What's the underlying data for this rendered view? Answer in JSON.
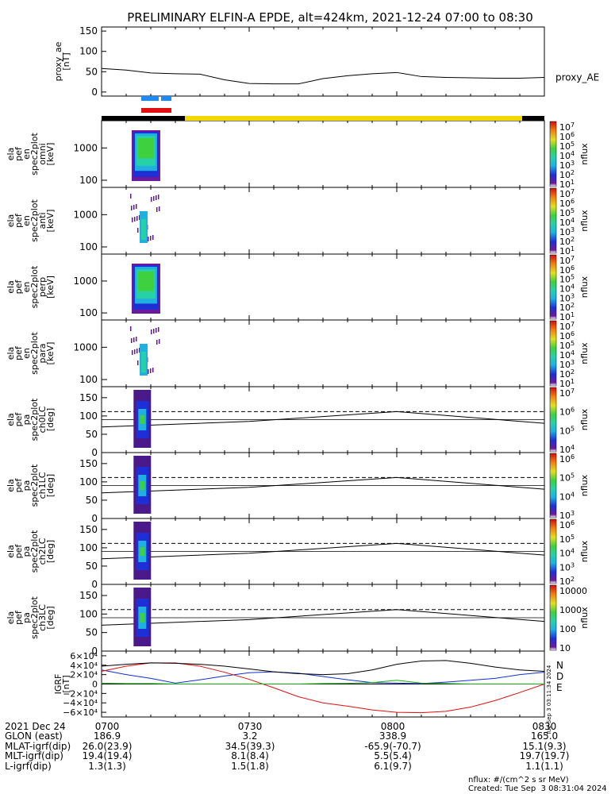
{
  "title": "PRELIMINARY ELFIN-A EPDE, alt=424km, 2021-12-24 07:00 to 08:30",
  "chart_data": [
    {
      "type": "line",
      "ylabel": [
        "proxy_ae",
        "[nT]"
      ],
      "yticks": [
        "150",
        "100",
        "50",
        "0"
      ],
      "ylim": [
        -10,
        160
      ],
      "series": [
        {
          "name": "proxy_AE",
          "x": [
            0,
            5,
            10,
            15,
            20,
            25,
            30,
            35,
            40,
            45,
            50,
            55,
            60,
            65,
            70,
            75,
            80,
            85,
            90
          ],
          "values": [
            58,
            54,
            47,
            45,
            44,
            30,
            21,
            20,
            20,
            33,
            40,
            45,
            48,
            38,
            36,
            35,
            34,
            34,
            36
          ]
        }
      ]
    },
    {
      "type": "heatmap",
      "ylabel": [
        "ela",
        "pef",
        "en",
        "spec2plot",
        "omni",
        "[keV]"
      ],
      "yticks": [
        "1000",
        "100"
      ],
      "colorbar_ticks": [
        "10^7",
        "10^6",
        "10^5",
        "10^4",
        "10^3",
        "10^2",
        "10^1"
      ],
      "colorbar_label": "nflux"
    },
    {
      "type": "heatmap",
      "ylabel": [
        "ela",
        "pef",
        "en",
        "spec2plot",
        "anti",
        "[keV]"
      ],
      "yticks": [
        "1000",
        "100"
      ],
      "colorbar_ticks": [
        "10^7",
        "10^6",
        "10^5",
        "10^4",
        "10^3",
        "10^2",
        "10^1"
      ],
      "colorbar_label": "nflux"
    },
    {
      "type": "heatmap",
      "ylabel": [
        "ela",
        "pef",
        "en",
        "spec2plot",
        "perp",
        "[keV]"
      ],
      "yticks": [
        "1000",
        "100"
      ],
      "colorbar_ticks": [
        "10^7",
        "10^6",
        "10^5",
        "10^4",
        "10^3",
        "10^2",
        "10^1"
      ],
      "colorbar_label": "nflux"
    },
    {
      "type": "heatmap",
      "ylabel": [
        "ela",
        "pef",
        "en",
        "spec2plot",
        "para",
        "[keV]"
      ],
      "yticks": [
        "1000",
        "100"
      ],
      "colorbar_ticks": [
        "10^7",
        "10^6",
        "10^5",
        "10^4",
        "10^3",
        "10^2",
        "10^1"
      ],
      "colorbar_label": "nflux"
    },
    {
      "type": "heatmap",
      "ylabel": [
        "ela",
        "pef",
        "pa",
        "spec2plot",
        "ch0LC",
        "[deg]"
      ],
      "yticks": [
        "150",
        "100",
        "50",
        "0"
      ],
      "colorbar_ticks": [
        "10^7",
        "10^6",
        "10^5",
        "10^4"
      ],
      "colorbar_label": "nflux"
    },
    {
      "type": "heatmap",
      "ylabel": [
        "ela",
        "pef",
        "pa",
        "spec2plot",
        "ch1LC",
        "[deg]"
      ],
      "yticks": [
        "150",
        "100",
        "50",
        "0"
      ],
      "colorbar_ticks": [
        "10^6",
        "10^5",
        "10^4",
        "10^3"
      ],
      "colorbar_label": "nflux"
    },
    {
      "type": "heatmap",
      "ylabel": [
        "ela",
        "pef",
        "pa",
        "spec2plot",
        "ch2LC",
        "[deg]"
      ],
      "yticks": [
        "150",
        "100",
        "50",
        "0"
      ],
      "colorbar_ticks": [
        "10^6",
        "10^5",
        "10^4",
        "10^3",
        "10^2"
      ],
      "colorbar_label": "nflux"
    },
    {
      "type": "heatmap",
      "ylabel": [
        "ela",
        "pef",
        "pa",
        "spec2plot",
        "ch3LC",
        "[deg]"
      ],
      "yticks": [
        "150",
        "100",
        "50",
        "0"
      ],
      "colorbar_ticks": [
        "10000",
        "1000",
        "100",
        "10"
      ],
      "colorbar_label": "nflux"
    },
    {
      "type": "line",
      "ylabel": [
        "IGRF",
        "[nT]"
      ],
      "yticks": [
        "6×10⁴",
        "4×10⁴",
        "2×10⁴",
        "0",
        "−2×10⁴",
        "−4×10⁴",
        "−6×10⁴"
      ],
      "ylim": [
        -70000,
        70000
      ],
      "series": [
        {
          "name": "N",
          "color": "#1030d0",
          "x": [
            0,
            5,
            10,
            15,
            20,
            25,
            30,
            35,
            40,
            45,
            50,
            55,
            60,
            65,
            70,
            75,
            80,
            85,
            90
          ],
          "values": [
            30000,
            20000,
            12000,
            2000,
            9000,
            17000,
            24000,
            26000,
            23000,
            16000,
            9000,
            3000,
            2000,
            1000,
            4000,
            8000,
            12000,
            20000,
            25000
          ]
        },
        {
          "name": "D",
          "color": "#e01010",
          "x": [
            0,
            5,
            10,
            15,
            20,
            25,
            30,
            35,
            40,
            45,
            50,
            55,
            60,
            65,
            70,
            75,
            80,
            85,
            90
          ],
          "values": [
            27000,
            38000,
            45000,
            45000,
            38000,
            25000,
            10000,
            -8000,
            -27000,
            -40000,
            -47000,
            -55000,
            -60000,
            -61000,
            -58000,
            -49000,
            -35000,
            -18000,
            0
          ]
        },
        {
          "name": "E",
          "color": "#10b010",
          "x": [
            0,
            5,
            10,
            15,
            20,
            25,
            30,
            35,
            40,
            45,
            50,
            55,
            60,
            65,
            70,
            75,
            80,
            85,
            90
          ],
          "values": [
            2000,
            1000,
            1000,
            0,
            0,
            0,
            0,
            0,
            0,
            1000,
            1500,
            3000,
            8000,
            2000,
            1000,
            0,
            0,
            0,
            0
          ]
        },
        {
          "name": "",
          "color": "#000000",
          "x": [
            0,
            5,
            10,
            15,
            20,
            25,
            30,
            35,
            40,
            45,
            50,
            55,
            60,
            65,
            70,
            75,
            80,
            85,
            90
          ],
          "values": [
            38000,
            42000,
            45000,
            44000,
            42000,
            38000,
            32000,
            26000,
            22000,
            20000,
            22000,
            30000,
            42000,
            49000,
            50000,
            44000,
            36000,
            30000,
            27000
          ]
        }
      ],
      "legend": [
        "N",
        "D",
        "E"
      ],
      "side_note": "Tue Sep  3 03:11:34 2024"
    }
  ],
  "time_axis": {
    "ticks": [
      "0700",
      "0730",
      "0800",
      "0830"
    ],
    "header": "2021 Dec 24"
  },
  "footer_rows": [
    {
      "label": "2021 Dec 24",
      "values": [
        "0700",
        "0730",
        "0800",
        "0830"
      ]
    },
    {
      "label": "GLON (east)",
      "values": [
        "186.9",
        "3.2",
        "338.9",
        "165.0"
      ]
    },
    {
      "label": "MLAT-igrf(dip)",
      "values": [
        "26.0(23.9)",
        "34.5(39.3)",
        "-65.9(-70.7)",
        "15.1(9.3)"
      ]
    },
    {
      "label": "MLT-igrf(dip)",
      "values": [
        "19.4(19.4)",
        "8.1(8.4)",
        "5.5(5.4)",
        "19.7(19.7)"
      ]
    },
    {
      "label": "L-igrf(dip)",
      "values": [
        "1.3(1.3)",
        "1.5(1.8)",
        "6.1(9.7)",
        "1.1(1.1)"
      ]
    }
  ],
  "units_note": "nflux: #/(cm^2 s sr MeV)",
  "created_note": "Created: Tue Sep  3 08:31:04 2024",
  "status_bar": {
    "colors": [
      "#000000",
      "#f0d800",
      "#000000"
    ]
  },
  "markers": {
    "blue": "#1a8cff",
    "red": "#e01010"
  }
}
